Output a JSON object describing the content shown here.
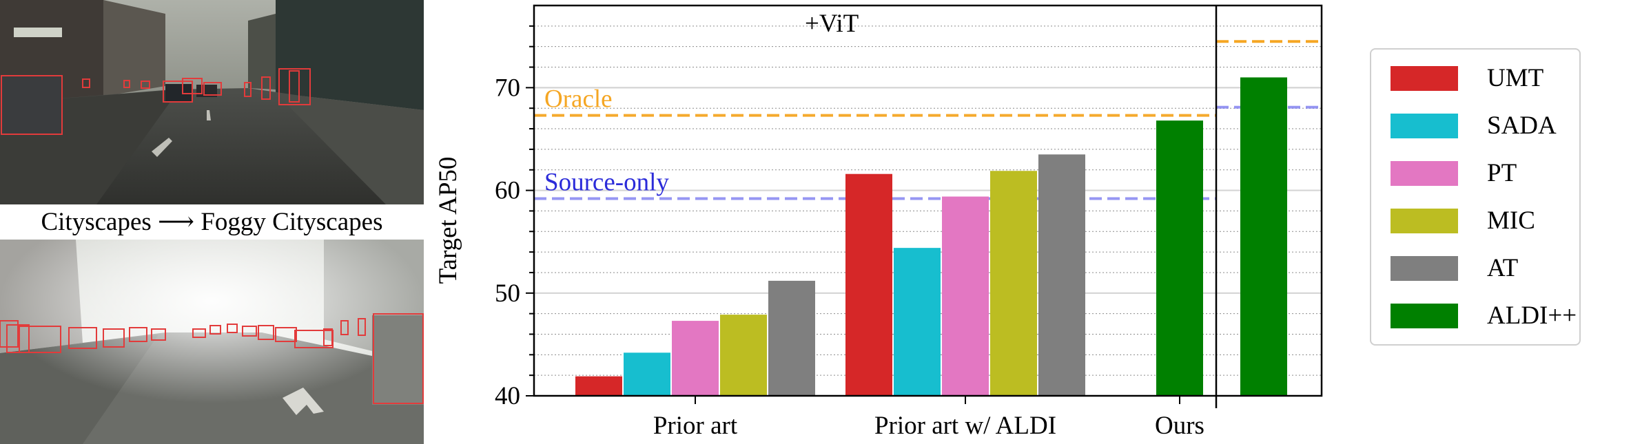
{
  "figure": {
    "caption": "Cityscapes ⟶ Foggy Cityscapes",
    "photos": [
      {
        "name": "cityscapes-sample",
        "description_icon": "street-scene-icon"
      },
      {
        "name": "foggy-cityscapes-sample",
        "description_icon": "foggy-street-scene-icon"
      }
    ]
  },
  "chart_data": {
    "type": "bar",
    "title": "",
    "ylabel": "Target AP50",
    "xlabel": "",
    "ylim": [
      40,
      78
    ],
    "yticks": [
      40,
      50,
      60,
      70
    ],
    "grid": true,
    "groups": [
      {
        "label": "Prior art",
        "bars": [
          {
            "series": "UMT",
            "value": 41.9
          },
          {
            "series": "SADA",
            "value": 44.2
          },
          {
            "series": "PT",
            "value": 47.3
          },
          {
            "series": "MIC",
            "value": 47.9
          },
          {
            "series": "AT",
            "value": 51.2
          }
        ]
      },
      {
        "label": "Prior art w/ ALDI",
        "bars": [
          {
            "series": "UMT",
            "value": 61.6
          },
          {
            "series": "SADA",
            "value": 54.4
          },
          {
            "series": "PT",
            "value": 59.4
          },
          {
            "series": "MIC",
            "value": 61.9
          },
          {
            "series": "AT",
            "value": 63.5
          }
        ]
      },
      {
        "label": "Ours",
        "bars": [
          {
            "series": "ALDI++",
            "value": 66.8
          }
        ]
      }
    ],
    "vit_section": {
      "label": "+ViT",
      "bars": [
        {
          "series": "ALDI++",
          "value": 71.0
        }
      ],
      "oracle": 74.5,
      "source_only": 68.1
    },
    "reference_lines": [
      {
        "name": "Oracle",
        "value": 67.3,
        "color": "#f5a623"
      },
      {
        "name": "Source-only",
        "value": 59.2,
        "color": "#6b6bef"
      }
    ],
    "series": [
      {
        "name": "UMT",
        "color": "#d62728"
      },
      {
        "name": "SADA",
        "color": "#17becf"
      },
      {
        "name": "PT",
        "color": "#e377c2"
      },
      {
        "name": "MIC",
        "color": "#bcbd22"
      },
      {
        "name": "AT",
        "color": "#7f7f7f"
      },
      {
        "name": "ALDI++",
        "color": "#008000"
      }
    ],
    "legend_position": "right"
  }
}
